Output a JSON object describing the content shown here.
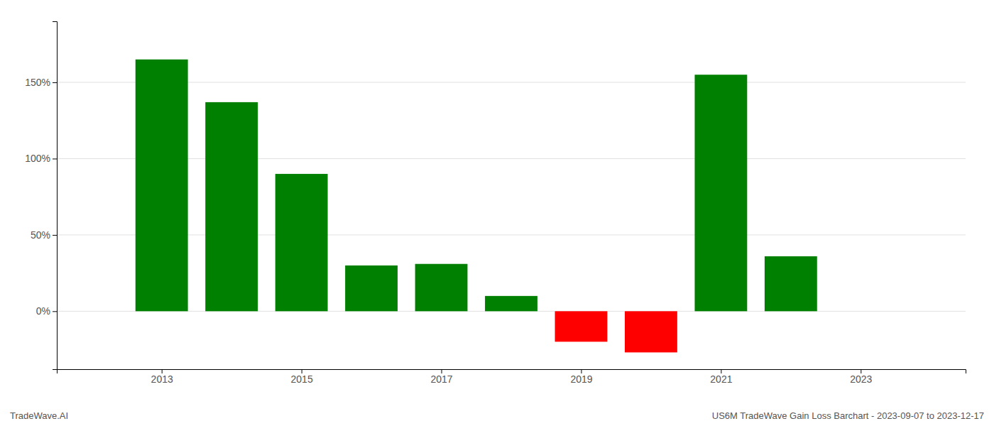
{
  "chart_data": {
    "type": "bar",
    "x": [
      2013,
      2014,
      2015,
      2016,
      2017,
      2018,
      2019,
      2020,
      2021,
      2022
    ],
    "values": [
      1.65,
      1.37,
      0.9,
      0.3,
      0.31,
      0.1,
      -0.2,
      -0.27,
      1.55,
      0.36
    ],
    "colors": [
      "#008000",
      "#008000",
      "#008000",
      "#008000",
      "#008000",
      "#008000",
      "#ff0000",
      "#ff0000",
      "#008000",
      "#008000"
    ],
    "xlim": [
      2011.5,
      2024.5
    ],
    "xticks": [
      2013,
      2015,
      2017,
      2019,
      2021,
      2023
    ],
    "ylim": [
      -0.38,
      1.9
    ],
    "yticks": [
      {
        "value": 0.0,
        "label": "0%"
      },
      {
        "value": 0.5,
        "label": "50%"
      },
      {
        "value": 1.0,
        "label": "100%"
      },
      {
        "value": 1.5,
        "label": "150%"
      }
    ],
    "grid": true,
    "annotations": [
      "TradeWave.AI",
      "US6M TradeWave Gain Loss Barchart - 2023-09-07 to 2023-12-17"
    ]
  }
}
